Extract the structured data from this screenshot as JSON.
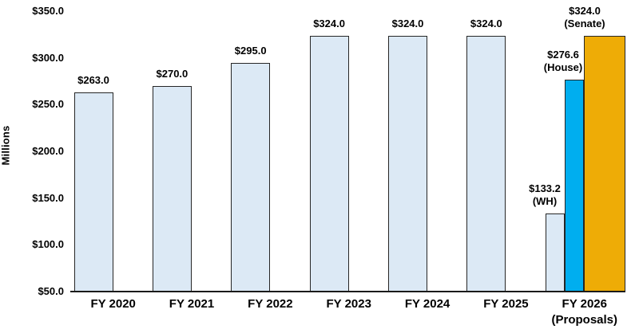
{
  "chart_data": {
    "type": "bar",
    "title": "",
    "xlabel": "",
    "ylabel": "Millions",
    "ylim": [
      50,
      350
    ],
    "ytick_step": 50,
    "grid": false,
    "legend": false,
    "yticks": [
      {
        "label": "$350.0",
        "value": 350
      },
      {
        "label": "$300.0",
        "value": 300
      },
      {
        "label": "$250.0",
        "value": 250
      },
      {
        "label": "$200.0",
        "value": 200
      },
      {
        "label": "$150.0",
        "value": 150
      },
      {
        "label": "$100.0",
        "value": 100
      },
      {
        "label": "$50.0",
        "value": 50
      }
    ],
    "categories": [
      "FY 2020",
      "FY 2021",
      "FY 2022",
      "FY 2023",
      "FY 2024",
      "FY 2025",
      "FY 2026\n(Proposals)"
    ],
    "bars": [
      {
        "category": "FY 2020",
        "value": 263.0,
        "label_lines": [
          "$263.0"
        ],
        "color": "#DCE9F5"
      },
      {
        "category": "FY 2021",
        "value": 270.0,
        "label_lines": [
          "$270.0"
        ],
        "color": "#DCE9F5"
      },
      {
        "category": "FY 2022",
        "value": 295.0,
        "label_lines": [
          "$295.0"
        ],
        "color": "#DCE9F5"
      },
      {
        "category": "FY 2023",
        "value": 324.0,
        "label_lines": [
          "$324.0"
        ],
        "color": "#DCE9F5"
      },
      {
        "category": "FY 2024",
        "value": 324.0,
        "label_lines": [
          "$324.0"
        ],
        "color": "#DCE9F5"
      },
      {
        "category": "FY 2025",
        "value": 324.0,
        "label_lines": [
          "$324.0"
        ],
        "color": "#DCE9F5"
      },
      {
        "category": "FY 2026 (Proposals)",
        "proposal": "WH",
        "value": 133.2,
        "label_lines": [
          "$133.2",
          "(WH)"
        ],
        "color": "#DCE9F5"
      },
      {
        "category": "FY 2026 (Proposals)",
        "proposal": "House",
        "value": 276.6,
        "label_lines": [
          "$276.6",
          "(House)"
        ],
        "color": "#00AEEF"
      },
      {
        "category": "FY 2026 (Proposals)",
        "proposal": "Senate",
        "value": 324.0,
        "label_lines": [
          "$324.0",
          "(Senate)"
        ],
        "color": "#EEAC06"
      }
    ],
    "colors": {
      "default_bar": "#DCE9F5",
      "house_bar": "#00AEEF",
      "senate_bar": "#EEAC06",
      "bar_border": "#262626",
      "axis_line": "#1A1A1A",
      "text": "#000000",
      "background": "#FFFFFF"
    }
  }
}
